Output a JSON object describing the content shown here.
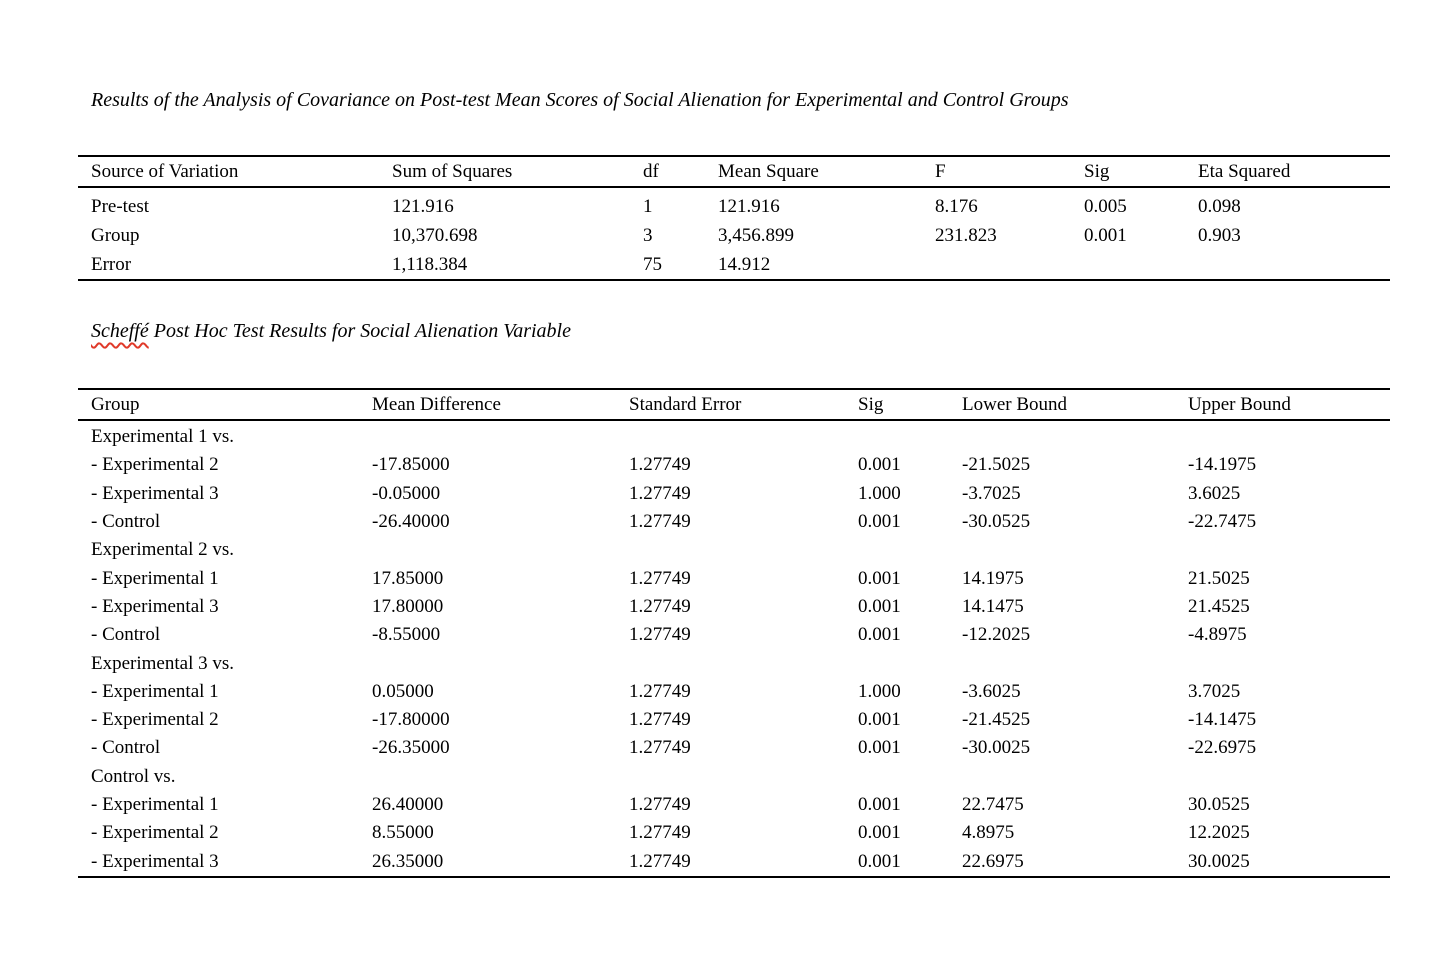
{
  "page": {
    "background": "#ffffff",
    "text_color": "#000000",
    "rule_color": "#000000",
    "spellcheck_squiggle_color": "#e03a2a"
  },
  "ancova": {
    "title": "Results of the Analysis of Covariance on Post-test Mean Scores of Social Alienation for Experimental and Control Groups",
    "columns": [
      "Source of Variation",
      "Sum of Squares",
      "df",
      "Mean Square",
      "F",
      "Sig",
      "Eta Squared"
    ],
    "rows": [
      [
        "Pre-test",
        "121.916",
        "1",
        "121.916",
        "8.176",
        "0.005",
        "0.098"
      ],
      [
        "Group",
        "10,370.698",
        "3",
        "3,456.899",
        "231.823",
        "0.001",
        "0.903"
      ],
      [
        "Error",
        "1,118.384",
        "75",
        "14.912",
        "",
        "",
        ""
      ]
    ]
  },
  "scheffe": {
    "title_word": "Scheffé",
    "title_rest": " Post Hoc Test Results for Social Alienation Variable",
    "columns": [
      "Group",
      "Mean Difference",
      "Standard Error",
      "Sig",
      "Lower Bound",
      "Upper Bound"
    ],
    "rows": [
      [
        "Experimental 1 vs.",
        "",
        "",
        "",
        "",
        ""
      ],
      [
        "- Experimental 2",
        "-17.85000",
        "1.27749",
        "0.001",
        "-21.5025",
        "-14.1975"
      ],
      [
        "- Experimental 3",
        "-0.05000",
        "1.27749",
        "1.000",
        "-3.7025",
        "3.6025"
      ],
      [
        "- Control",
        "-26.40000",
        "1.27749",
        "0.001",
        "-30.0525",
        "-22.7475"
      ],
      [
        "Experimental 2 vs.",
        "",
        "",
        "",
        "",
        ""
      ],
      [
        "- Experimental 1",
        "17.85000",
        "1.27749",
        "0.001",
        "14.1975",
        "21.5025"
      ],
      [
        "- Experimental 3",
        "17.80000",
        "1.27749",
        "0.001",
        "14.1475",
        "21.4525"
      ],
      [
        "- Control",
        "-8.55000",
        "1.27749",
        "0.001",
        "-12.2025",
        "-4.8975"
      ],
      [
        "Experimental 3 vs.",
        "",
        "",
        "",
        "",
        ""
      ],
      [
        "- Experimental 1",
        "0.05000",
        "1.27749",
        "1.000",
        "-3.6025",
        "3.7025"
      ],
      [
        "- Experimental 2",
        "-17.80000",
        "1.27749",
        "0.001",
        "-21.4525",
        "-14.1475"
      ],
      [
        "- Control",
        "-26.35000",
        "1.27749",
        "0.001",
        "-30.0025",
        "-22.6975"
      ],
      [
        "Control vs.",
        "",
        "",
        "",
        "",
        ""
      ],
      [
        "- Experimental 1",
        "26.40000",
        "1.27749",
        "0.001",
        "22.7475",
        "30.0525"
      ],
      [
        "- Experimental 2",
        "8.55000",
        "1.27749",
        "0.001",
        "4.8975",
        "12.2025"
      ],
      [
        "- Experimental 3",
        "26.35000",
        "1.27749",
        "0.001",
        "22.6975",
        "30.0025"
      ]
    ]
  }
}
